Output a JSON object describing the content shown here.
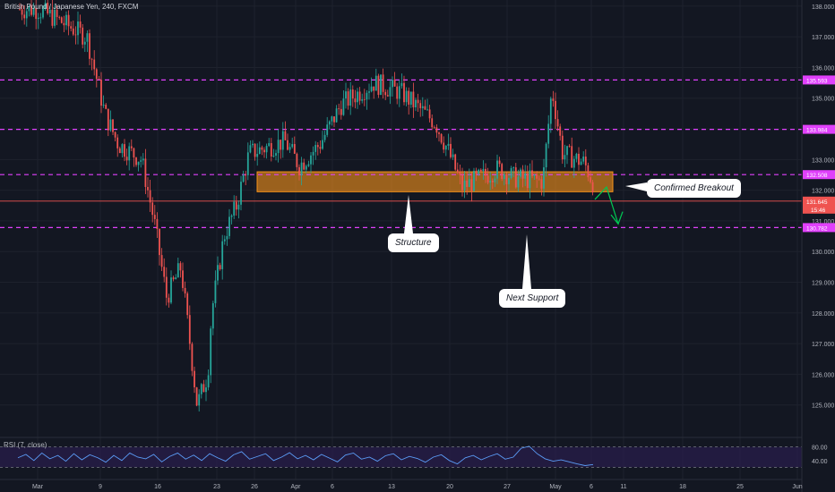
{
  "header": {
    "symbol_title": "British Pound / Japanese Yen, 240, FXCM"
  },
  "colors": {
    "up": "#26a69a",
    "down": "#ef5350",
    "level": "#e040fb",
    "zone": "#f7931a",
    "rsi": "#5b9cf6",
    "rsi_band": "#2a1e4d",
    "grid": "#1e222d",
    "arrow": "#00c853"
  },
  "chart_data": {
    "type": "candlestick",
    "title": "British Pound / Japanese Yen, 240, FXCM",
    "ylim": [
      124.0,
      138.2
    ],
    "price_ticks": [
      "138.000",
      "137.000",
      "136.000",
      "135.000",
      "134.000",
      "133.000",
      "132.000",
      "131.000",
      "130.000",
      "129.000",
      "128.000",
      "127.000",
      "126.000",
      "125.000"
    ],
    "x_ticks": [
      "Mar",
      "9",
      "16",
      "23",
      "26",
      "Apr",
      "6",
      "13",
      "20",
      "27",
      "May",
      "6",
      "11",
      "18",
      "25",
      "Jun"
    ],
    "levels": [
      {
        "value": 135.593,
        "label": "135.593"
      },
      {
        "value": 133.984,
        "label": "133.984"
      },
      {
        "value": 132.508,
        "label": "132.508"
      },
      {
        "value": 130.782,
        "label": "130.782"
      }
    ],
    "current_price": {
      "value": 131.645,
      "label": "131.645",
      "countdown": "15:46"
    },
    "zone": {
      "low": 131.95,
      "high": 132.6
    },
    "annotations": [
      "Confirmed Breakout",
      "Structure",
      "Next Support"
    ],
    "anchors": [
      [
        "Mar",
        137.9
      ],
      [
        "Mar",
        137.6
      ],
      [
        "9",
        137.0
      ],
      [
        "9",
        134.5
      ],
      [
        "9",
        133.5
      ],
      [
        "16",
        133.0
      ],
      [
        "16",
        131.0
      ],
      [
        "16",
        128.5
      ],
      [
        "16",
        129.5
      ],
      [
        "23",
        126.0
      ],
      [
        "23",
        125.0
      ],
      [
        "23",
        128.0
      ],
      [
        "23",
        130.5
      ],
      [
        "26",
        131.5
      ],
      [
        "26",
        133.2
      ],
      [
        "Apr",
        133.6
      ],
      [
        "Apr",
        132.8
      ],
      [
        "6",
        133.5
      ],
      [
        "6",
        134.8
      ],
      [
        "13",
        135.5
      ],
      [
        "13",
        135.2
      ],
      [
        "20",
        134.2
      ],
      [
        "20",
        133.3
      ],
      [
        "20",
        132.1
      ],
      [
        "27",
        132.7
      ],
      [
        "27",
        132.4
      ],
      [
        "May",
        132.3
      ],
      [
        "May",
        135.3
      ],
      [
        "May",
        133.2
      ],
      [
        "6",
        132.9
      ],
      [
        "6",
        132.1
      ]
    ],
    "rsi": {
      "label": "RSI (7, close)",
      "ticks": [
        "80.00",
        "40.00"
      ],
      "upper": 80,
      "lower": 20,
      "series": [
        48,
        58,
        40,
        62,
        45,
        55,
        38,
        60,
        42,
        57,
        48,
        35,
        55,
        40,
        62,
        50,
        45,
        58,
        36,
        52,
        62,
        44,
        56,
        40,
        60,
        48,
        38,
        57,
        66,
        44,
        52,
        60,
        40,
        50,
        63,
        45,
        55,
        42,
        58,
        47,
        36,
        56,
        62,
        44,
        50,
        38,
        54,
        60,
        42,
        52,
        46,
        35,
        50,
        57,
        40,
        30,
        48,
        55,
        42,
        52,
        60,
        44,
        50,
        76,
        82,
        60,
        45,
        38,
        42,
        36,
        30,
        25,
        28
      ]
    }
  }
}
